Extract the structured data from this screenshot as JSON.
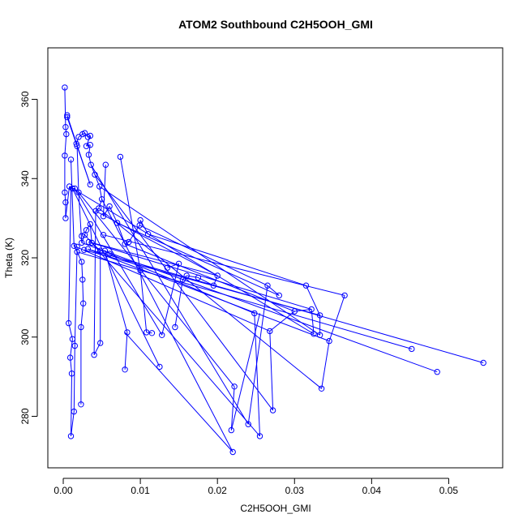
{
  "chart_data": {
    "type": "line",
    "title": "ATOM2 Southbound C2H5OOH_GMI",
    "xlabel": "C2H5OOH_GMI",
    "ylabel": "Theta (K)",
    "xlim": [
      -0.002,
      0.057
    ],
    "ylim": [
      267,
      373
    ],
    "x_ticks": [
      0.0,
      0.01,
      0.02,
      0.03,
      0.04,
      0.05
    ],
    "x_tick_labels": [
      "0.00",
      "0.01",
      "0.02",
      "0.03",
      "0.04",
      "0.05"
    ],
    "y_ticks": [
      280,
      300,
      320,
      340,
      360
    ],
    "y_tick_labels": [
      "280",
      "300",
      "320",
      "340",
      "360"
    ],
    "grid": false,
    "series_color": "#0000ff",
    "markers": "open-circle",
    "points": [
      {
        "x": 0.0002,
        "y": 363.0
      },
      {
        "x": 0.0005,
        "y": 356.0
      },
      {
        "x": 0.0005,
        "y": 355.5
      },
      {
        "x": 0.0003,
        "y": 353.0
      },
      {
        "x": 0.0004,
        "y": 351.2
      },
      {
        "x": 0.0002,
        "y": 345.8
      },
      {
        "x": 0.0002,
        "y": 336.5
      },
      {
        "x": 0.0003,
        "y": 334.0
      },
      {
        "x": 0.0003,
        "y": 330.0
      },
      {
        "x": 0.0008,
        "y": 338.0
      },
      {
        "x": 0.0012,
        "y": 337.5
      },
      {
        "x": 0.0015,
        "y": 337.5
      },
      {
        "x": 0.001,
        "y": 344.8
      },
      {
        "x": 0.002,
        "y": 336.5
      },
      {
        "x": 0.0017,
        "y": 348.8
      },
      {
        "x": 0.0018,
        "y": 348.2
      },
      {
        "x": 0.002,
        "y": 350.5
      },
      {
        "x": 0.0025,
        "y": 351.2
      },
      {
        "x": 0.0028,
        "y": 351.5
      },
      {
        "x": 0.0032,
        "y": 350.5
      },
      {
        "x": 0.0035,
        "y": 350.8
      },
      {
        "x": 0.003,
        "y": 348.2
      },
      {
        "x": 0.0035,
        "y": 348.5
      },
      {
        "x": 0.0033,
        "y": 346.0
      },
      {
        "x": 0.0036,
        "y": 343.5
      },
      {
        "x": 0.0041,
        "y": 341.0
      },
      {
        "x": 0.0035,
        "y": 338.5
      },
      {
        "x": 0.0047,
        "y": 338.0
      },
      {
        "x": 0.0055,
        "y": 343.5
      },
      {
        "x": 0.005,
        "y": 334.8
      },
      {
        "x": 0.0046,
        "y": 332.5
      },
      {
        "x": 0.0042,
        "y": 331.8
      },
      {
        "x": 0.006,
        "y": 333.0
      },
      {
        "x": 0.0052,
        "y": 330.5
      },
      {
        "x": 0.0074,
        "y": 345.5
      },
      {
        "x": 0.007,
        "y": 328.8
      },
      {
        "x": 0.0035,
        "y": 328.5
      },
      {
        "x": 0.003,
        "y": 327.0
      },
      {
        "x": 0.0024,
        "y": 325.5
      },
      {
        "x": 0.0028,
        "y": 325.8
      },
      {
        "x": 0.0033,
        "y": 324.0
      },
      {
        "x": 0.0037,
        "y": 323.8
      },
      {
        "x": 0.0024,
        "y": 323.8
      },
      {
        "x": 0.0018,
        "y": 322.8
      },
      {
        "x": 0.0014,
        "y": 323.0
      },
      {
        "x": 0.0018,
        "y": 321.5
      },
      {
        "x": 0.0027,
        "y": 322.0
      },
      {
        "x": 0.0032,
        "y": 322.2
      },
      {
        "x": 0.0048,
        "y": 321.8
      },
      {
        "x": 0.0054,
        "y": 321.8
      },
      {
        "x": 0.0052,
        "y": 325.8
      },
      {
        "x": 0.006,
        "y": 321.0
      },
      {
        "x": 0.008,
        "y": 323.5
      },
      {
        "x": 0.0085,
        "y": 324.0
      },
      {
        "x": 0.01,
        "y": 329.5
      },
      {
        "x": 0.0099,
        "y": 328.2
      },
      {
        "x": 0.011,
        "y": 326.0
      },
      {
        "x": 0.0025,
        "y": 314.5
      },
      {
        "x": 0.0024,
        "y": 319.0
      },
      {
        "x": 0.0026,
        "y": 308.5
      },
      {
        "x": 0.0023,
        "y": 302.5
      },
      {
        "x": 0.0023,
        "y": 283.0
      },
      {
        "x": 0.0015,
        "y": 297.8
      },
      {
        "x": 0.0012,
        "y": 299.5
      },
      {
        "x": 0.0009,
        "y": 294.8
      },
      {
        "x": 0.0011,
        "y": 290.8
      },
      {
        "x": 0.0014,
        "y": 281.2
      },
      {
        "x": 0.001,
        "y": 275.0
      },
      {
        "x": 0.0007,
        "y": 303.5
      },
      {
        "x": 0.004,
        "y": 295.5
      },
      {
        "x": 0.0048,
        "y": 298.5
      },
      {
        "x": 0.008,
        "y": 291.8
      },
      {
        "x": 0.0083,
        "y": 301.2
      },
      {
        "x": 0.01,
        "y": 316.8
      },
      {
        "x": 0.0108,
        "y": 301.2
      },
      {
        "x": 0.0115,
        "y": 301.0
      },
      {
        "x": 0.0128,
        "y": 300.5
      },
      {
        "x": 0.0125,
        "y": 292.5
      },
      {
        "x": 0.0135,
        "y": 317.5
      },
      {
        "x": 0.0145,
        "y": 302.5
      },
      {
        "x": 0.015,
        "y": 318.5
      },
      {
        "x": 0.0155,
        "y": 314.5
      },
      {
        "x": 0.016,
        "y": 315.5
      },
      {
        "x": 0.0175,
        "y": 315.0
      },
      {
        "x": 0.0195,
        "y": 313.0
      },
      {
        "x": 0.02,
        "y": 315.5
      },
      {
        "x": 0.0222,
        "y": 287.5
      },
      {
        "x": 0.0218,
        "y": 276.5
      },
      {
        "x": 0.022,
        "y": 271.0
      },
      {
        "x": 0.024,
        "y": 278.0
      },
      {
        "x": 0.0248,
        "y": 306.0
      },
      {
        "x": 0.0255,
        "y": 275.0
      },
      {
        "x": 0.0265,
        "y": 313.0
      },
      {
        "x": 0.0268,
        "y": 301.5
      },
      {
        "x": 0.0272,
        "y": 281.5
      },
      {
        "x": 0.028,
        "y": 310.5
      },
      {
        "x": 0.03,
        "y": 306.5
      },
      {
        "x": 0.0315,
        "y": 313.0
      },
      {
        "x": 0.0322,
        "y": 307.0
      },
      {
        "x": 0.0325,
        "y": 300.8
      },
      {
        "x": 0.0333,
        "y": 300.5
      },
      {
        "x": 0.0335,
        "y": 287.0
      },
      {
        "x": 0.0333,
        "y": 305.5
      },
      {
        "x": 0.0345,
        "y": 299.0
      },
      {
        "x": 0.0365,
        "y": 310.5
      },
      {
        "x": 0.0452,
        "y": 297.0
      },
      {
        "x": 0.0485,
        "y": 291.2
      },
      {
        "x": 0.0545,
        "y": 293.5
      }
    ],
    "segments": [
      [
        0.0002,
        363.0,
        0.0003,
        353.0
      ],
      [
        0.0003,
        353.0,
        0.0004,
        351.2
      ],
      [
        0.0004,
        351.2,
        0.0002,
        345.8
      ],
      [
        0.0002,
        345.8,
        0.0002,
        336.5
      ],
      [
        0.0002,
        336.5,
        0.0003,
        334.0
      ],
      [
        0.0003,
        334.0,
        0.0003,
        330.0
      ],
      [
        0.0003,
        330.0,
        0.0008,
        338.0
      ],
      [
        0.0008,
        338.0,
        0.0012,
        337.5
      ],
      [
        0.0012,
        337.5,
        0.0015,
        337.5
      ],
      [
        0.0005,
        356.0,
        0.0035,
        338.5
      ],
      [
        0.0035,
        338.5,
        0.0005,
        355.5
      ],
      [
        0.001,
        344.8,
        0.0014,
        323.0
      ],
      [
        0.0014,
        323.0,
        0.0018,
        321.5
      ],
      [
        0.0018,
        321.5,
        0.0024,
        319.0
      ],
      [
        0.0024,
        319.0,
        0.0025,
        314.5
      ],
      [
        0.0025,
        314.5,
        0.0026,
        308.5
      ],
      [
        0.0026,
        308.5,
        0.0023,
        302.5
      ],
      [
        0.0023,
        302.5,
        0.0023,
        283.0
      ],
      [
        0.0017,
        348.8,
        0.002,
        350.5
      ],
      [
        0.002,
        350.5,
        0.0025,
        351.2
      ],
      [
        0.0025,
        351.2,
        0.0028,
        351.5
      ],
      [
        0.0028,
        351.5,
        0.0032,
        350.5
      ],
      [
        0.0032,
        350.5,
        0.0035,
        350.8
      ],
      [
        0.0035,
        350.8,
        0.003,
        348.2
      ],
      [
        0.003,
        348.2,
        0.0035,
        348.5
      ],
      [
        0.0035,
        348.5,
        0.0033,
        346.0
      ],
      [
        0.0033,
        346.0,
        0.0036,
        343.5
      ],
      [
        0.0036,
        343.5,
        0.0041,
        341.0
      ],
      [
        0.0041,
        341.0,
        0.0047,
        338.0
      ],
      [
        0.0047,
        338.0,
        0.005,
        334.8
      ],
      [
        0.005,
        334.8,
        0.0046,
        332.5
      ],
      [
        0.0046,
        332.5,
        0.0042,
        331.8
      ],
      [
        0.0018,
        348.2,
        0.002,
        336.5
      ],
      [
        0.002,
        336.5,
        0.0024,
        323.8
      ],
      [
        0.0024,
        323.8,
        0.003,
        327.0
      ],
      [
        0.003,
        327.0,
        0.0035,
        328.5
      ],
      [
        0.0035,
        328.5,
        0.0037,
        323.8
      ],
      [
        0.0037,
        323.8,
        0.0048,
        321.8
      ],
      [
        0.0048,
        321.8,
        0.0054,
        321.8
      ],
      [
        0.0054,
        321.8,
        0.006,
        321.0
      ],
      [
        0.0055,
        343.5,
        0.0052,
        330.5
      ],
      [
        0.0052,
        330.5,
        0.006,
        333.0
      ],
      [
        0.006,
        333.0,
        0.007,
        328.8
      ],
      [
        0.007,
        328.8,
        0.008,
        323.5
      ],
      [
        0.008,
        323.5,
        0.0085,
        324.0
      ],
      [
        0.0085,
        324.0,
        0.0099,
        328.2
      ],
      [
        0.0099,
        328.2,
        0.01,
        329.5
      ],
      [
        0.01,
        329.5,
        0.011,
        326.0
      ],
      [
        0.0074,
        345.5,
        0.01,
        316.8
      ],
      [
        0.01,
        316.8,
        0.0108,
        301.2
      ],
      [
        0.0108,
        301.2,
        0.0115,
        301.0
      ],
      [
        0.0015,
        337.5,
        0.0128,
        300.5
      ],
      [
        0.0128,
        300.5,
        0.015,
        318.5
      ],
      [
        0.015,
        318.5,
        0.0135,
        317.5
      ],
      [
        0.0012,
        337.5,
        0.0125,
        292.5
      ],
      [
        0.002,
        336.5,
        0.0222,
        287.5
      ],
      [
        0.0222,
        287.5,
        0.0218,
        276.5
      ],
      [
        0.0218,
        276.5,
        0.0255,
        306.0
      ],
      [
        0.005,
        334.8,
        0.022,
        271.0
      ],
      [
        0.022,
        271.0,
        0.008,
        301.2
      ],
      [
        0.0036,
        343.5,
        0.024,
        278.0
      ],
      [
        0.024,
        278.0,
        0.0265,
        313.0
      ],
      [
        0.0265,
        313.0,
        0.028,
        310.5
      ],
      [
        0.0028,
        325.8,
        0.0255,
        275.0
      ],
      [
        0.0255,
        275.0,
        0.0248,
        306.0
      ],
      [
        0.0041,
        341.0,
        0.0272,
        281.5
      ],
      [
        0.0272,
        281.5,
        0.0268,
        301.5
      ],
      [
        0.0268,
        301.5,
        0.03,
        306.5
      ],
      [
        0.03,
        306.5,
        0.0322,
        307.0
      ],
      [
        0.0322,
        307.0,
        0.0325,
        300.8
      ],
      [
        0.0046,
        332.5,
        0.0335,
        287.0
      ],
      [
        0.0335,
        287.0,
        0.0345,
        299.0
      ],
      [
        0.0345,
        299.0,
        0.0365,
        310.5
      ],
      [
        0.0047,
        338.0,
        0.0333,
        300.5
      ],
      [
        0.0333,
        300.5,
        0.0333,
        305.5
      ],
      [
        0.0333,
        305.5,
        0.0315,
        313.0
      ],
      [
        0.0018,
        321.5,
        0.0452,
        297.0
      ],
      [
        0.0024,
        323.8,
        0.0485,
        291.2
      ],
      [
        0.0032,
        322.2,
        0.0545,
        293.5
      ],
      [
        0.0037,
        323.8,
        0.02,
        315.5
      ],
      [
        0.02,
        315.5,
        0.0195,
        313.0
      ],
      [
        0.0195,
        313.0,
        0.0175,
        315.0
      ],
      [
        0.0175,
        315.0,
        0.016,
        315.5
      ],
      [
        0.016,
        315.5,
        0.0155,
        314.5
      ],
      [
        0.0155,
        314.5,
        0.0145,
        302.5
      ],
      [
        0.0054,
        321.8,
        0.0083,
        301.2
      ],
      [
        0.0083,
        301.2,
        0.008,
        291.8
      ],
      [
        0.0048,
        321.8,
        0.0048,
        298.5
      ],
      [
        0.0048,
        298.5,
        0.004,
        295.5
      ],
      [
        0.004,
        295.5,
        0.0042,
        331.8
      ],
      [
        0.001,
        338.0,
        0.0007,
        303.5
      ],
      [
        0.0007,
        303.5,
        0.0012,
        299.5
      ],
      [
        0.0012,
        299.5,
        0.0009,
        294.8
      ],
      [
        0.0009,
        294.8,
        0.0011,
        290.8
      ],
      [
        0.0011,
        290.8,
        0.001,
        275.0
      ],
      [
        0.001,
        275.0,
        0.0014,
        281.2
      ],
      [
        0.0014,
        281.2,
        0.0015,
        297.8
      ],
      [
        0.0015,
        297.8,
        0.0018,
        322.8
      ],
      [
        0.0008,
        338.0,
        0.0325,
        300.8
      ],
      [
        0.0027,
        322.0,
        0.0333,
        305.5
      ],
      [
        0.0033,
        324.0,
        0.0322,
        307.0
      ],
      [
        0.006,
        321.0,
        0.0248,
        306.0
      ],
      [
        0.008,
        323.5,
        0.03,
        306.5
      ],
      [
        0.011,
        326.0,
        0.0315,
        313.0
      ],
      [
        0.0099,
        328.2,
        0.0265,
        313.0
      ],
      [
        0.007,
        328.8,
        0.028,
        310.5
      ],
      [
        0.0052,
        325.8,
        0.0365,
        310.5
      ],
      [
        0.0042,
        331.8,
        0.02,
        315.5
      ],
      [
        0.0032,
        322.2,
        0.0345,
        299.0
      ],
      [
        0.0014,
        323.0,
        0.0268,
        301.5
      ]
    ]
  }
}
